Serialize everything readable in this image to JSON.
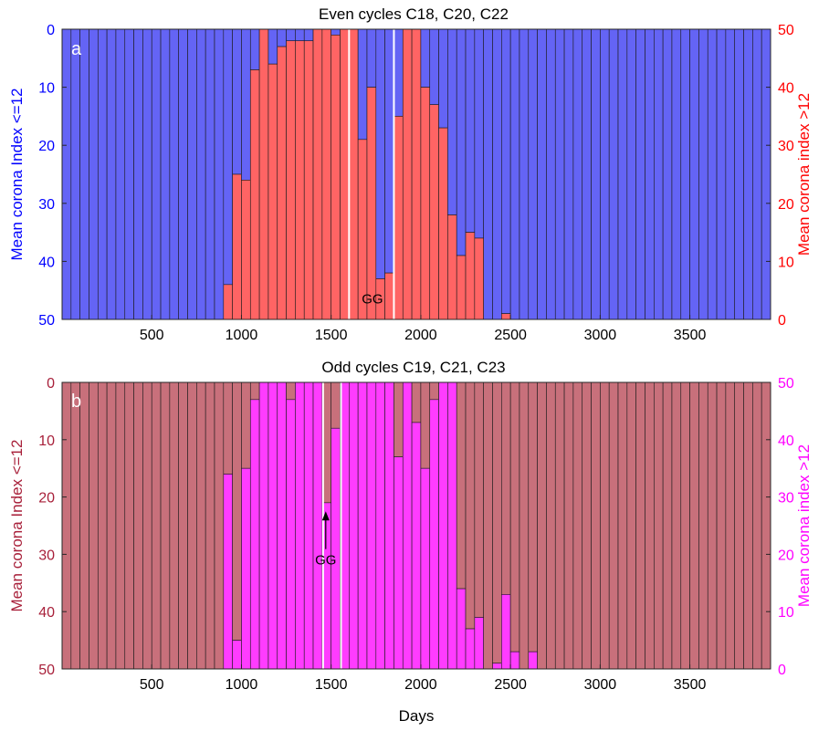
{
  "chart_data": [
    {
      "type": "bar",
      "panel_label": "a",
      "title": "Even cycles C18, C20, C22",
      "xlabel": "",
      "ylabel_left": "Mean corona Index <=12",
      "ylabel_right": "Mean corona index >12",
      "xlim": [
        0,
        3950
      ],
      "xticks": [
        500,
        1000,
        1500,
        2000,
        2500,
        3000,
        3500
      ],
      "ylim_left_reversed": [
        0,
        50
      ],
      "yticks_left": [
        0,
        10,
        20,
        30,
        40,
        50
      ],
      "ylim_right": [
        0,
        50
      ],
      "yticks_right": [
        0,
        10,
        20,
        30,
        40,
        50
      ],
      "bin_width_days": 50,
      "colors": {
        "low": "#6464f5",
        "high": "#ff6464",
        "left_axis": "#0000ff",
        "right_axis": "#ff0000"
      },
      "x": [
        0,
        50,
        100,
        150,
        200,
        250,
        300,
        350,
        400,
        450,
        500,
        550,
        600,
        650,
        700,
        750,
        800,
        850,
        900,
        950,
        1000,
        1050,
        1100,
        1150,
        1200,
        1250,
        1300,
        1350,
        1400,
        1450,
        1500,
        1550,
        1600,
        1650,
        1700,
        1750,
        1800,
        1850,
        1900,
        1950,
        2000,
        2050,
        2100,
        2150,
        2200,
        2250,
        2300,
        2350,
        2400,
        2450,
        2500,
        2550,
        2600,
        2650,
        2700,
        2750,
        2800,
        2850,
        2900,
        2950,
        3000,
        3050,
        3100,
        3150,
        3200,
        3250,
        3300,
        3350,
        3400,
        3450,
        3500,
        3550,
        3600,
        3650,
        3700,
        3750,
        3800,
        3850,
        3900
      ],
      "high_values": [
        0,
        0,
        0,
        0,
        0,
        0,
        0,
        0,
        0,
        0,
        0,
        0,
        0,
        0,
        0,
        0,
        0,
        0,
        6,
        25,
        24,
        43,
        50,
        44,
        47,
        48,
        48,
        48,
        50,
        50,
        49,
        50,
        50,
        31,
        40,
        7,
        8,
        35,
        50,
        50,
        40,
        37,
        33,
        18,
        11,
        15,
        14,
        0,
        0,
        1,
        0,
        0,
        0,
        0,
        0,
        0,
        0,
        0,
        0,
        0,
        0,
        0,
        0,
        0,
        0,
        0,
        0,
        0,
        0,
        0,
        0,
        0,
        0,
        0,
        0,
        0,
        0,
        0,
        0
      ],
      "low_values": [
        50,
        50,
        50,
        50,
        50,
        50,
        50,
        50,
        50,
        50,
        50,
        50,
        50,
        50,
        50,
        50,
        50,
        50,
        44,
        25,
        26,
        7,
        0,
        6,
        3,
        2,
        2,
        2,
        0,
        0,
        1,
        0,
        0,
        19,
        10,
        43,
        42,
        15,
        0,
        0,
        10,
        13,
        17,
        32,
        39,
        35,
        36,
        50,
        50,
        49,
        50,
        50,
        50,
        50,
        50,
        50,
        50,
        50,
        50,
        50,
        50,
        50,
        50,
        50,
        50,
        50,
        50,
        50,
        50,
        50,
        50,
        50,
        50,
        50,
        50,
        50,
        50,
        50,
        50
      ],
      "vertical_lines_days": [
        1600,
        1850
      ],
      "annotations": [
        {
          "text": "GG",
          "x": 1730,
          "y_left": 46.5
        }
      ]
    },
    {
      "type": "bar",
      "panel_label": "b",
      "title": "Odd cycles C19, C21, C23",
      "xlabel": "Days",
      "ylabel_left": "Mean corona Index <=12",
      "ylabel_right": "Mean corona index >12",
      "xlim": [
        0,
        3950
      ],
      "xticks": [
        500,
        1000,
        1500,
        2000,
        2500,
        3000,
        3500
      ],
      "ylim_left_reversed": [
        0,
        50
      ],
      "yticks_left": [
        0,
        10,
        20,
        30,
        40,
        50
      ],
      "ylim_right": [
        0,
        50
      ],
      "yticks_right": [
        0,
        10,
        20,
        30,
        40,
        50
      ],
      "bin_width_days": 50,
      "colors": {
        "low": "#c8707b",
        "high": "#ff3cff",
        "left_axis": "#a8203a",
        "right_axis": "#ff00ff"
      },
      "x": [
        0,
        50,
        100,
        150,
        200,
        250,
        300,
        350,
        400,
        450,
        500,
        550,
        600,
        650,
        700,
        750,
        800,
        850,
        900,
        950,
        1000,
        1050,
        1100,
        1150,
        1200,
        1250,
        1300,
        1350,
        1400,
        1450,
        1500,
        1550,
        1600,
        1650,
        1700,
        1750,
        1800,
        1850,
        1900,
        1950,
        2000,
        2050,
        2100,
        2150,
        2200,
        2250,
        2300,
        2350,
        2400,
        2450,
        2500,
        2550,
        2600,
        2650,
        2700,
        2750,
        2800,
        2850,
        2900,
        2950,
        3000,
        3050,
        3100,
        3150,
        3200,
        3250,
        3300,
        3350,
        3400,
        3450,
        3500,
        3550,
        3600,
        3650,
        3700,
        3750,
        3800,
        3850,
        3900
      ],
      "high_values": [
        0,
        0,
        0,
        0,
        0,
        0,
        0,
        0,
        0,
        0,
        0,
        0,
        0,
        0,
        0,
        0,
        0,
        0,
        34,
        5,
        35,
        47,
        50,
        50,
        50,
        47,
        50,
        50,
        50,
        29,
        42,
        50,
        50,
        50,
        50,
        50,
        50,
        37,
        50,
        43,
        35,
        47,
        50,
        50,
        14,
        7,
        9,
        0,
        1,
        13,
        3,
        0,
        3,
        0,
        0,
        0,
        0,
        0,
        0,
        0,
        0,
        0,
        0,
        0,
        0,
        0,
        0,
        0,
        0,
        0,
        0,
        0,
        0,
        0,
        0,
        0,
        0,
        0,
        0
      ],
      "low_values": [
        50,
        50,
        50,
        50,
        50,
        50,
        50,
        50,
        50,
        50,
        50,
        50,
        50,
        50,
        50,
        50,
        50,
        50,
        16,
        45,
        15,
        3,
        0,
        0,
        0,
        3,
        0,
        0,
        0,
        21,
        8,
        0,
        0,
        0,
        0,
        0,
        0,
        13,
        0,
        7,
        15,
        3,
        0,
        0,
        36,
        43,
        41,
        50,
        49,
        37,
        47,
        50,
        47,
        50,
        50,
        50,
        50,
        50,
        50,
        50,
        50,
        50,
        50,
        50,
        50,
        50,
        50,
        50,
        50,
        50,
        50,
        50,
        50,
        50,
        50,
        50,
        50,
        50,
        50
      ],
      "vertical_lines_days": [
        1455,
        1555
      ],
      "annotations": [
        {
          "text": "GG",
          "x": 1470,
          "y_left": 31,
          "arrow_to_y_left": 22.5
        }
      ]
    }
  ]
}
